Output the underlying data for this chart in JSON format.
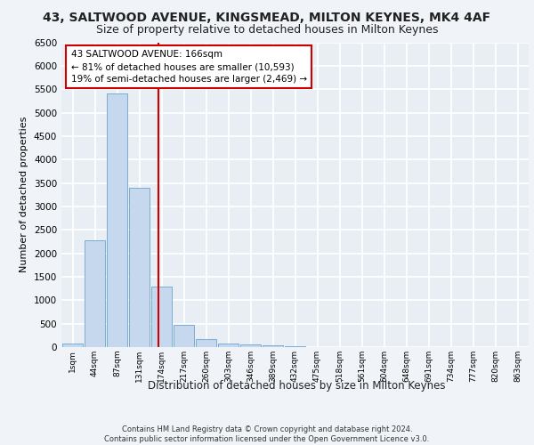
{
  "title": "43, SALTWOOD AVENUE, KINGSMEAD, MILTON KEYNES, MK4 4AF",
  "subtitle": "Size of property relative to detached houses in Milton Keynes",
  "xlabel": "Distribution of detached houses by size in Milton Keynes",
  "ylabel": "Number of detached properties",
  "categories": [
    "1sqm",
    "44sqm",
    "87sqm",
    "131sqm",
    "174sqm",
    "217sqm",
    "260sqm",
    "303sqm",
    "346sqm",
    "389sqm",
    "432sqm",
    "475sqm",
    "518sqm",
    "561sqm",
    "604sqm",
    "648sqm",
    "691sqm",
    "734sqm",
    "777sqm",
    "820sqm",
    "863sqm"
  ],
  "bar_values": [
    80,
    2280,
    5400,
    3400,
    1300,
    480,
    180,
    80,
    50,
    30,
    15,
    5,
    2,
    1,
    0,
    0,
    0,
    0,
    0,
    0,
    0
  ],
  "bar_color": "#c5d8ed",
  "bar_edge_color": "#7aadd4",
  "background_color": "#e8eef4",
  "grid_color": "#ffffff",
  "vline_x": 3.87,
  "vline_color": "#cc0000",
  "annotation_text": "43 SALTWOOD AVENUE: 166sqm\n← 81% of detached houses are smaller (10,593)\n19% of semi-detached houses are larger (2,469) →",
  "annotation_box_color": "#ffffff",
  "annotation_box_edge": "#cc0000",
  "ylim": [
    0,
    6500
  ],
  "yticks": [
    0,
    500,
    1000,
    1500,
    2000,
    2500,
    3000,
    3500,
    4000,
    4500,
    5000,
    5500,
    6000,
    6500
  ],
  "footer": "Contains HM Land Registry data © Crown copyright and database right 2024.\nContains public sector information licensed under the Open Government Licence v3.0.",
  "title_fontsize": 10,
  "subtitle_fontsize": 9,
  "fig_bg": "#f0f4f8"
}
